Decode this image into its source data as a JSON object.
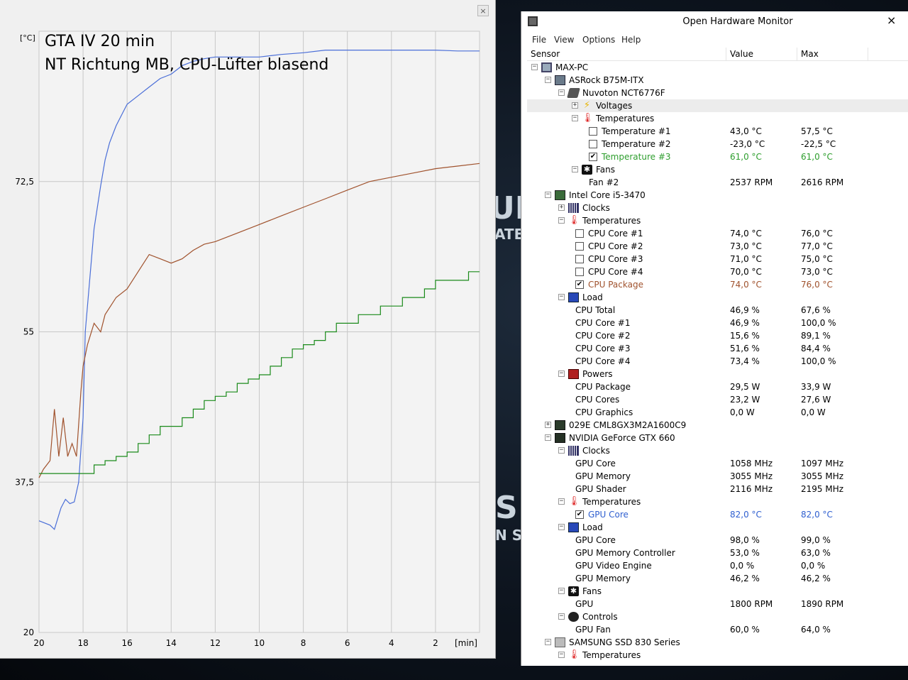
{
  "plot_window": {
    "close_label": "×",
    "title_line1": "GTA IV 20 min",
    "title_line2": "NT Richtung MB, CPU-Lüfter blasend",
    "chart_data": {
      "type": "line",
      "ylabel": "[°C]",
      "xlabel": "[min]",
      "x_ticks": [
        "20",
        "18",
        "16",
        "14",
        "12",
        "10",
        "8",
        "6",
        "4",
        "2"
      ],
      "y_ticks": [
        "72,5",
        "55",
        "37,5",
        "20"
      ],
      "ylim": [
        20,
        90
      ],
      "xlim": [
        20,
        0
      ],
      "grid": true,
      "series": [
        {
          "color": "#4a6ed8",
          "x": [
            20,
            19.5,
            19.3,
            19.0,
            18.8,
            18.6,
            18.4,
            18.2,
            18.0,
            17.9,
            17.7,
            17.5,
            17.2,
            17.0,
            16.8,
            16.5,
            16.2,
            16.0,
            15.5,
            15.0,
            14.5,
            14.0,
            13.5,
            13.0,
            12.5,
            12.0,
            11.0,
            10.0,
            9.0,
            8.0,
            7.0,
            6.0,
            5.0,
            4.0,
            3.0,
            2.0,
            1.0,
            0.0
          ],
          "values": [
            33,
            32.5,
            32,
            34.5,
            35.5,
            35,
            35.2,
            37.5,
            45,
            55,
            61,
            67,
            72,
            75,
            77,
            79,
            80.5,
            81.5,
            82.5,
            83.5,
            84.5,
            85,
            86,
            86.5,
            86.8,
            87,
            87,
            87,
            87.3,
            87.5,
            87.8,
            87.8,
            87.8,
            87.8,
            87.8,
            87.8,
            87.7,
            87.7
          ]
        },
        {
          "color": "#a0522d",
          "x": [
            20,
            19.8,
            19.5,
            19.3,
            19.1,
            18.9,
            18.7,
            18.5,
            18.3,
            18.1,
            18.0,
            17.8,
            17.5,
            17.2,
            17.0,
            16.5,
            16.0,
            15.5,
            15.0,
            14.5,
            14.0,
            13.5,
            13.0,
            12.5,
            12.0,
            11.0,
            10.0,
            9.0,
            8.0,
            7.0,
            6.0,
            5.0,
            4.0,
            3.0,
            2.0,
            1.0,
            0.0
          ],
          "values": [
            38,
            39,
            40,
            46,
            40.5,
            45,
            40.5,
            42,
            40.5,
            48,
            51,
            53.5,
            56,
            55,
            57,
            59,
            60,
            62,
            64,
            63.5,
            63,
            63.5,
            64.5,
            65.2,
            65.5,
            66.5,
            67.5,
            68.5,
            69.5,
            70.5,
            71.5,
            72.5,
            73,
            73.5,
            74,
            74.3,
            74.6
          ]
        },
        {
          "color": "#1a8a1a",
          "x": [
            20,
            18.5,
            18.0,
            17.5,
            17.0,
            16.5,
            16.0,
            15.5,
            15.0,
            14.5,
            14.0,
            13.5,
            13.0,
            12.5,
            12.0,
            11.5,
            11.0,
            10.5,
            10.0,
            9.5,
            9.0,
            8.5,
            8.0,
            7.5,
            7.0,
            6.5,
            6.0,
            5.5,
            5.0,
            4.5,
            4.0,
            3.5,
            3.0,
            2.5,
            2.0,
            1.5,
            1.0,
            0.5,
            0.0
          ],
          "values": [
            38.5,
            38.5,
            38.5,
            39.5,
            40,
            40.5,
            41,
            42,
            43,
            44,
            44,
            45,
            46,
            47,
            47.5,
            48,
            49,
            49.5,
            50,
            51,
            52,
            53,
            53.5,
            54,
            55,
            56,
            56,
            57,
            57,
            58,
            58,
            59,
            59,
            60,
            61,
            61,
            61,
            62,
            62
          ]
        }
      ]
    }
  },
  "wallpaper": {
    "fragments": [
      "UR",
      "ATE",
      "S",
      "N S"
    ]
  },
  "ohm": {
    "title": "Open Hardware Monitor",
    "close_label": "×",
    "menu": [
      "File",
      "View",
      "Options",
      "Help"
    ],
    "columns": [
      "Sensor",
      "Value",
      "Max"
    ],
    "rows": [
      {
        "indent": 0,
        "exp": "−",
        "icon": "pc",
        "name": "MAX-PC",
        "value": "",
        "max": ""
      },
      {
        "indent": 1,
        "exp": "−",
        "icon": "mb",
        "name": "ASRock B75M-ITX",
        "value": "",
        "max": ""
      },
      {
        "indent": 2,
        "exp": "−",
        "icon": "chip",
        "name": "Nuvoton NCT6776F",
        "value": "",
        "max": ""
      },
      {
        "indent": 3,
        "exp": "+",
        "icon": "volt",
        "name": "Voltages",
        "value": "",
        "max": "",
        "highlight": true
      },
      {
        "indent": 3,
        "exp": "−",
        "icon": "temp",
        "name": "Temperatures",
        "value": "",
        "max": ""
      },
      {
        "indent": 4,
        "check": "",
        "name": "Temperature #1",
        "value": "43,0 °C",
        "max": "57,5 °C"
      },
      {
        "indent": 4,
        "check": "",
        "name": "Temperature #2",
        "value": "-23,0 °C",
        "max": "-22,5 °C"
      },
      {
        "indent": 4,
        "check": "✔",
        "name": "Temperature #3",
        "value": "61,0 °C",
        "max": "61,0 °C",
        "color": "green"
      },
      {
        "indent": 3,
        "exp": "−",
        "icon": "fan",
        "name": "Fans",
        "value": "",
        "max": ""
      },
      {
        "indent": 4,
        "name": "Fan #2",
        "value": "2537 RPM",
        "max": "2616 RPM"
      },
      {
        "indent": 1,
        "exp": "−",
        "icon": "cpu",
        "name": "Intel Core i5-3470",
        "value": "",
        "max": ""
      },
      {
        "indent": 2,
        "exp": "+",
        "icon": "clock",
        "name": "Clocks",
        "value": "",
        "max": ""
      },
      {
        "indent": 2,
        "exp": "−",
        "icon": "temp",
        "name": "Temperatures",
        "value": "",
        "max": ""
      },
      {
        "indent": 3,
        "check": "",
        "name": "CPU Core #1",
        "value": "74,0 °C",
        "max": "76,0 °C"
      },
      {
        "indent": 3,
        "check": "",
        "name": "CPU Core #2",
        "value": "73,0 °C",
        "max": "77,0 °C"
      },
      {
        "indent": 3,
        "check": "",
        "name": "CPU Core #3",
        "value": "71,0 °C",
        "max": "75,0 °C"
      },
      {
        "indent": 3,
        "check": "",
        "name": "CPU Core #4",
        "value": "70,0 °C",
        "max": "73,0 °C"
      },
      {
        "indent": 3,
        "check": "✔",
        "name": "CPU Package",
        "value": "74,0 °C",
        "max": "76,0 °C",
        "color": "brown"
      },
      {
        "indent": 2,
        "exp": "−",
        "icon": "load",
        "name": "Load",
        "value": "",
        "max": ""
      },
      {
        "indent": 3,
        "name": "CPU Total",
        "value": "46,9 %",
        "max": "67,6 %"
      },
      {
        "indent": 3,
        "name": "CPU Core #1",
        "value": "46,9 %",
        "max": "100,0 %"
      },
      {
        "indent": 3,
        "name": "CPU Core #2",
        "value": "15,6 %",
        "max": "89,1 %"
      },
      {
        "indent": 3,
        "name": "CPU Core #3",
        "value": "51,6 %",
        "max": "84,4 %"
      },
      {
        "indent": 3,
        "name": "CPU Core #4",
        "value": "73,4 %",
        "max": "100,0 %"
      },
      {
        "indent": 2,
        "exp": "−",
        "icon": "power",
        "name": "Powers",
        "value": "",
        "max": ""
      },
      {
        "indent": 3,
        "name": "CPU Package",
        "value": "29,5 W",
        "max": "33,9 W"
      },
      {
        "indent": 3,
        "name": "CPU Cores",
        "value": "23,2 W",
        "max": "27,6 W"
      },
      {
        "indent": 3,
        "name": "CPU Graphics",
        "value": "0,0 W",
        "max": "0,0 W"
      },
      {
        "indent": 1,
        "exp": "+",
        "icon": "ram",
        "name": "029E CML8GX3M2A1600C9",
        "value": "",
        "max": ""
      },
      {
        "indent": 1,
        "exp": "−",
        "icon": "gpu",
        "name": "NVIDIA GeForce GTX 660",
        "value": "",
        "max": ""
      },
      {
        "indent": 2,
        "exp": "−",
        "icon": "clock",
        "name": "Clocks",
        "value": "",
        "max": ""
      },
      {
        "indent": 3,
        "name": "GPU Core",
        "value": "1058 MHz",
        "max": "1097 MHz"
      },
      {
        "indent": 3,
        "name": "GPU Memory",
        "value": "3055 MHz",
        "max": "3055 MHz"
      },
      {
        "indent": 3,
        "name": "GPU Shader",
        "value": "2116 MHz",
        "max": "2195 MHz"
      },
      {
        "indent": 2,
        "exp": "−",
        "icon": "temp",
        "name": "Temperatures",
        "value": "",
        "max": ""
      },
      {
        "indent": 3,
        "check": "✔",
        "name": "GPU Core",
        "value": "82,0 °C",
        "max": "82,0 °C",
        "color": "blue"
      },
      {
        "indent": 2,
        "exp": "−",
        "icon": "load",
        "name": "Load",
        "value": "",
        "max": ""
      },
      {
        "indent": 3,
        "name": "GPU Core",
        "value": "98,0 %",
        "max": "99,0 %"
      },
      {
        "indent": 3,
        "name": "GPU Memory Controller",
        "value": "53,0 %",
        "max": "63,0 %"
      },
      {
        "indent": 3,
        "name": "GPU Video Engine",
        "value": "0,0 %",
        "max": "0,0 %"
      },
      {
        "indent": 3,
        "name": "GPU Memory",
        "value": "46,2 %",
        "max": "46,2 %"
      },
      {
        "indent": 2,
        "exp": "−",
        "icon": "fan",
        "name": "Fans",
        "value": "",
        "max": ""
      },
      {
        "indent": 3,
        "name": "GPU",
        "value": "1800 RPM",
        "max": "1890 RPM"
      },
      {
        "indent": 2,
        "exp": "−",
        "icon": "ctrl",
        "name": "Controls",
        "value": "",
        "max": ""
      },
      {
        "indent": 3,
        "name": "GPU Fan",
        "value": "60,0 %",
        "max": "64,0 %"
      },
      {
        "indent": 1,
        "exp": "−",
        "icon": "ssd",
        "name": "SAMSUNG SSD 830 Series",
        "value": "",
        "max": ""
      },
      {
        "indent": 2,
        "exp": "−",
        "icon": "temp",
        "name": "Temperatures",
        "value": "",
        "max": ""
      }
    ]
  }
}
